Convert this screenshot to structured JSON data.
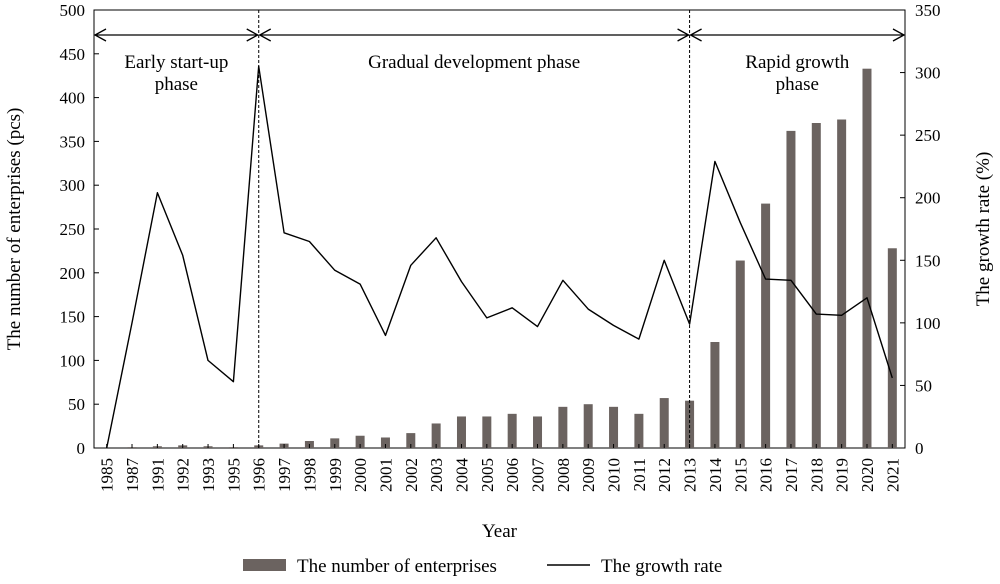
{
  "chart_data": {
    "type": "bar",
    "title": "",
    "xlabel": "Year",
    "ylabel": "The number of enterprises (pcs)",
    "y2label": "The growth rate (%)",
    "categories": [
      "1985",
      "1987",
      "1991",
      "1992",
      "1993",
      "1995",
      "1996",
      "1997",
      "1998",
      "1999",
      "2000",
      "2001",
      "2002",
      "2003",
      "2004",
      "2005",
      "2006",
      "2007",
      "2008",
      "2009",
      "2010",
      "2011",
      "2012",
      "2013",
      "2014",
      "2015",
      "2016",
      "2017",
      "2018",
      "2019",
      "2020",
      "2021"
    ],
    "ylim": [
      0,
      500
    ],
    "y2lim": [
      0,
      350
    ],
    "yticks": [
      "0",
      "50",
      "100",
      "150",
      "200",
      "250",
      "300",
      "350",
      "400",
      "450",
      "500"
    ],
    "y2ticks": [
      "0",
      "50",
      "100",
      "150",
      "200",
      "250",
      "300",
      "350"
    ],
    "grid": false,
    "legend_position": "bottom",
    "series": [
      {
        "name": "The number of enterprises",
        "type": "bar",
        "axis": "left",
        "color": "#6b6360",
        "values": [
          0,
          1,
          2,
          3,
          2,
          1,
          3,
          5,
          8,
          11,
          14,
          12,
          17,
          28,
          36,
          36,
          39,
          36,
          47,
          50,
          47,
          39,
          57,
          54,
          121,
          214,
          279,
          362,
          371,
          375,
          433,
          228
        ]
      },
      {
        "name": "The growth rate",
        "type": "line",
        "axis": "right",
        "color": "#000000",
        "values": [
          0,
          100,
          204,
          154,
          70,
          53,
          305,
          172,
          165,
          142,
          131,
          90,
          146,
          168,
          133,
          104,
          112,
          97,
          134,
          111,
          98,
          87,
          150,
          99,
          229,
          180,
          135,
          134,
          107,
          106,
          120,
          56
        ]
      }
    ],
    "phases": [
      {
        "label_lines": [
          "Early start-up",
          "phase"
        ],
        "from": "1985",
        "to": "1996"
      },
      {
        "label_lines": [
          "Gradual development phase"
        ],
        "from": "1996",
        "to": "2013"
      },
      {
        "label_lines": [
          "Rapid growth",
          "phase"
        ],
        "from": "2013",
        "to": "2021"
      }
    ]
  }
}
